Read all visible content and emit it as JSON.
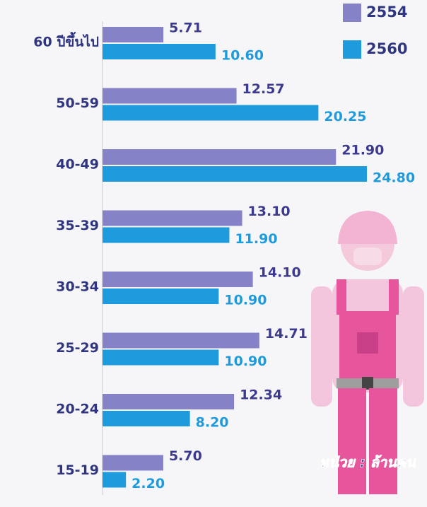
{
  "chart_data": {
    "type": "bar",
    "orientation": "horizontal",
    "categories": [
      "60 ปีขึ้นไป",
      "50-59",
      "40-49",
      "35-39",
      "30-34",
      "25-29",
      "20-24",
      "15-19"
    ],
    "series": [
      {
        "name": "2554",
        "color": "#8582c8",
        "values": [
          5.71,
          12.57,
          21.9,
          13.1,
          14.1,
          14.71,
          12.34,
          5.7
        ],
        "value_labels": [
          "5.71",
          "12.57",
          "21.90",
          "13.10",
          "14.10",
          "14.71",
          "12.34",
          "5.70"
        ]
      },
      {
        "name": "2560",
        "color": "#1d9bdc",
        "values": [
          10.6,
          20.25,
          24.8,
          11.9,
          10.9,
          10.9,
          8.2,
          2.2
        ],
        "value_labels": [
          "10.60",
          "20.25",
          "24.80",
          "11.90",
          "10.90",
          "10.90",
          "8.20",
          "2.20"
        ]
      }
    ],
    "xlim": [
      0,
      25
    ],
    "legend": "top-right",
    "annotation": "หน่วย : ล้านคน"
  }
}
